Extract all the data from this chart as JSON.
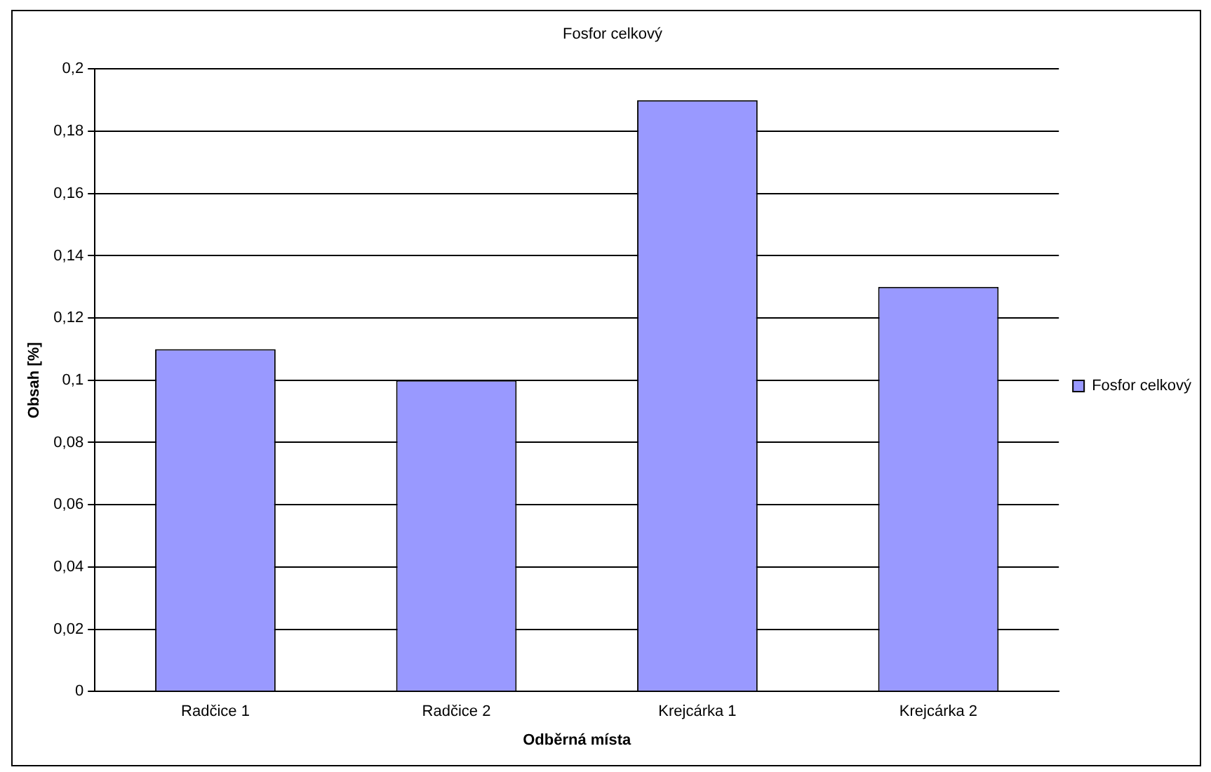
{
  "chart_data": {
    "type": "bar",
    "title": "Fosfor celkový",
    "xlabel": "Odběrná místa",
    "ylabel": "Obsah [%]",
    "categories": [
      "Radčice 1",
      "Radčice 2",
      "Krejcárka 1",
      "Krejcárka 2"
    ],
    "series": [
      {
        "name": "Fosfor celkový",
        "color": "#9999ff",
        "values": [
          0.11,
          0.1,
          0.19,
          0.13
        ]
      }
    ],
    "ylim": [
      0,
      0.2
    ],
    "yticks": [
      0,
      {
        "value": 0.02,
        "label": "0,02"
      },
      {
        "value": 0.04,
        "label": "0,04"
      },
      {
        "value": 0.06,
        "label": "0,06"
      },
      {
        "value": 0.08,
        "label": "0,08"
      },
      {
        "value": 0.1,
        "label": "0,1"
      },
      {
        "value": 0.12,
        "label": "0,12"
      },
      {
        "value": 0.14,
        "label": "0,14"
      },
      {
        "value": 0.16,
        "label": "0,16"
      },
      {
        "value": 0.18,
        "label": "0,18"
      },
      {
        "value": 0.2,
        "label": "0,2"
      }
    ],
    "grid": "y",
    "legend": "right"
  }
}
